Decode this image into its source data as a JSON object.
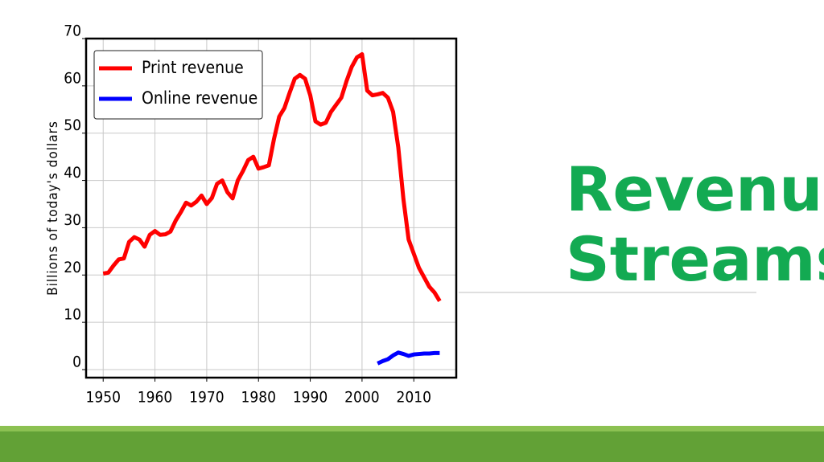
{
  "slide_title": [
    "Revenue",
    "Streams"
  ],
  "chart_data": {
    "type": "line",
    "y_label": "Billions of today's dollars",
    "x": [
      1950,
      1951,
      1952,
      1953,
      1954,
      1955,
      1956,
      1957,
      1958,
      1959,
      1960,
      1961,
      1962,
      1963,
      1964,
      1965,
      1966,
      1967,
      1968,
      1969,
      1970,
      1971,
      1972,
      1973,
      1974,
      1975,
      1976,
      1977,
      1978,
      1979,
      1980,
      1981,
      1982,
      1983,
      1984,
      1985,
      1986,
      1987,
      1988,
      1989,
      1990,
      1991,
      1992,
      1993,
      1994,
      1995,
      1996,
      1997,
      1998,
      1999,
      2000,
      2001,
      2002,
      2003,
      2004,
      2005,
      2006,
      2007,
      2008,
      2009,
      2010,
      2011,
      2012,
      2013,
      2014,
      2015
    ],
    "series": [
      {
        "name": "Print revenue",
        "color": "#ff0000",
        "values": [
          20.3,
          20.5,
          22,
          23.3,
          23.5,
          27,
          28,
          27.5,
          26,
          28.5,
          29.3,
          28.5,
          28.6,
          29.2,
          31.5,
          33.3,
          35.3,
          34.7,
          35.5,
          36.8,
          35,
          36.3,
          39.3,
          40,
          37.5,
          36.2,
          40,
          42,
          44.3,
          45,
          42.5,
          42.8,
          43.2,
          48.8,
          53.5,
          55.3,
          58.5,
          61.5,
          62.3,
          61.5,
          58,
          52.5,
          51.8,
          52.2,
          54.5,
          56,
          57.5,
          61,
          64,
          66,
          66.7,
          59,
          58,
          58.2,
          58.5,
          57.5,
          54.5,
          47,
          36,
          27.5,
          24.5,
          21.5,
          19.5,
          17.5,
          16.3,
          14.5
        ]
      },
      {
        "name": "Online revenue",
        "color": "#0000ff",
        "values": [
          null,
          null,
          null,
          null,
          null,
          null,
          null,
          null,
          null,
          null,
          null,
          null,
          null,
          null,
          null,
          null,
          null,
          null,
          null,
          null,
          null,
          null,
          null,
          null,
          null,
          null,
          null,
          null,
          null,
          null,
          null,
          null,
          null,
          null,
          null,
          null,
          null,
          null,
          null,
          null,
          null,
          null,
          null,
          null,
          null,
          null,
          null,
          null,
          null,
          null,
          null,
          null,
          null,
          1.3,
          1.8,
          2.2,
          3,
          3.6,
          3.3,
          2.9,
          3.2,
          3.3,
          3.4,
          3.4,
          3.5,
          3.5
        ]
      }
    ],
    "xlim": [
      1946.7,
      2018.2
    ],
    "ylim": [
      -1.7,
      70
    ],
    "xticks": [
      1950,
      1960,
      1970,
      1980,
      1990,
      2000,
      2010
    ],
    "yticks": [
      0,
      10,
      20,
      30,
      40,
      50,
      60,
      70
    ],
    "grid": true,
    "legend": "upper left"
  }
}
